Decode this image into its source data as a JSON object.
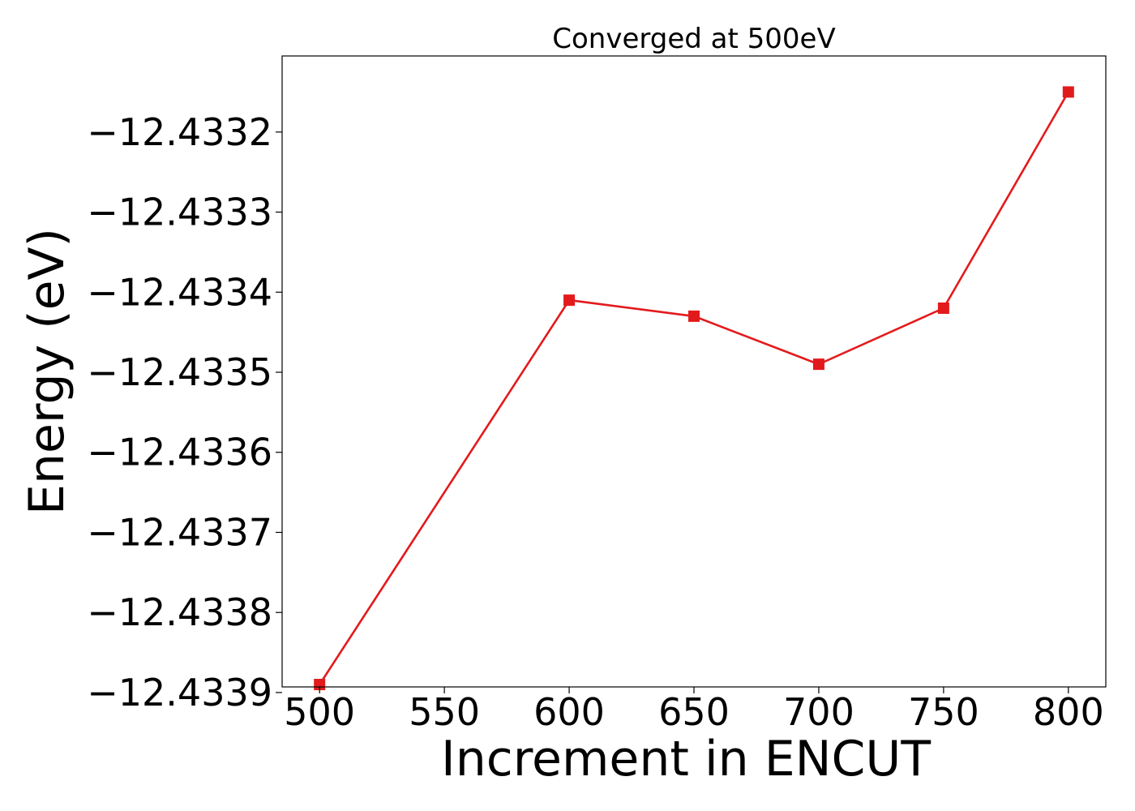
{
  "chart_data": {
    "type": "line",
    "title": "Converged at 500eV",
    "xlabel": "Increment in ENCUT",
    "ylabel": "Energy (eV)",
    "x": [
      500,
      600,
      650,
      700,
      750,
      800
    ],
    "series": [
      {
        "values": [
          -12.43389,
          -12.43341,
          -12.43343,
          -12.43349,
          -12.43342,
          -12.43315
        ],
        "color": "#e31a1c",
        "marker": "square"
      }
    ],
    "xticks": [
      500,
      550,
      600,
      650,
      700,
      750,
      800
    ],
    "xtick_labels": [
      "500",
      "550",
      "600",
      "650",
      "700",
      "750",
      "800"
    ],
    "yticks": [
      -12.4339,
      -12.4338,
      -12.4337,
      -12.4336,
      -12.4335,
      -12.4334,
      -12.4333,
      -12.4332
    ],
    "ytick_labels": [
      "−12.4339",
      "−12.4338",
      "−12.4337",
      "−12.4336",
      "−12.4335",
      "−12.4334",
      "−12.4333",
      "−12.4332"
    ],
    "xlim": [
      485,
      815
    ],
    "ylim": [
      -12.433893,
      -12.433105
    ],
    "grid": false
  }
}
